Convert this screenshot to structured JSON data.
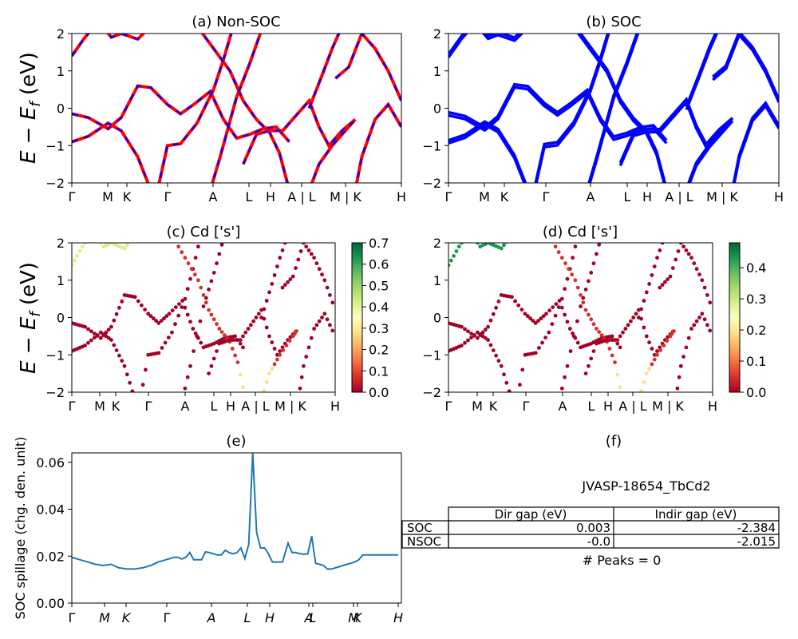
{
  "chart_data": [
    {
      "id": "a",
      "type": "line",
      "title": "(a) Non-SOC",
      "ylabel": "E − E_f (eV)",
      "ylim": [
        -2,
        2
      ],
      "yticks": [
        "2",
        "1",
        "0",
        "−1",
        "−2"
      ],
      "kpath": [
        "Γ",
        "M",
        "K",
        "Γ",
        "A",
        "L",
        "H",
        "A | L",
        "M | K",
        "H"
      ],
      "style": "red solid bands overlaid with blue dashed bands"
    },
    {
      "id": "b",
      "type": "line",
      "title": "(b) SOC",
      "ylim": [
        -2,
        2
      ],
      "yticks": [
        "2",
        "1",
        "0",
        "−1",
        "−2"
      ],
      "kpath": [
        "Γ",
        "M",
        "K",
        "Γ",
        "A",
        "L",
        "H",
        "A | L",
        "M | K",
        "H"
      ],
      "style": "blue bands, spin-orbit split"
    },
    {
      "id": "c",
      "type": "scatter",
      "title": "(c)  Cd ['s']",
      "ylabel": "E − E_f (eV)",
      "ylim": [
        -2,
        2
      ],
      "yticks": [
        "2",
        "1",
        "0",
        "−1",
        "−2"
      ],
      "kpath": [
        "Γ",
        "M",
        "K",
        "Γ",
        "A",
        "L",
        "H",
        "A | L",
        "M | K",
        "H"
      ],
      "colorbar": {
        "colormap": "RdYlGn",
        "range": [
          0.0,
          0.7
        ],
        "ticks": [
          "0.7",
          "0.6",
          "0.5",
          "0.4",
          "0.3",
          "0.2",
          "0.1",
          "0.0"
        ]
      }
    },
    {
      "id": "d",
      "type": "scatter",
      "title": "(d) Cd ['s']",
      "ylim": [
        -2,
        2
      ],
      "yticks": [
        "2",
        "1",
        "0",
        "−1",
        "−2"
      ],
      "kpath": [
        "Γ",
        "M",
        "K",
        "Γ",
        "A",
        "L",
        "H",
        "A | L",
        "M | K",
        "H"
      ],
      "colorbar": {
        "colormap": "RdYlGn",
        "range": [
          0.0,
          0.48
        ],
        "ticks": [
          "0.4",
          "0.3",
          "0.2",
          "0.1",
          "0.0"
        ]
      }
    },
    {
      "id": "e",
      "type": "line",
      "title": "(e)",
      "ylabel": "SOC spillage (chg. den. unit)",
      "ylim": [
        0.0,
        0.064
      ],
      "yticks": [
        "0.06",
        "0.04",
        "0.02",
        "0.00"
      ],
      "kpath": [
        "Γ",
        "M",
        "K",
        "Γ",
        "A",
        "L",
        "H",
        "A",
        "L",
        "M",
        "K",
        "H"
      ],
      "series": [
        {
          "x": [
            0,
            10,
            20,
            30,
            40,
            50,
            60,
            70,
            80,
            90,
            100,
            110,
            120,
            125,
            130,
            135,
            140,
            145,
            150,
            155,
            160,
            165,
            170,
            175,
            180,
            185,
            190,
            195,
            200,
            205,
            210,
            215,
            220,
            225,
            230,
            235,
            240,
            245,
            250,
            255,
            260,
            262,
            264,
            266,
            268,
            270,
            275,
            280,
            285,
            290,
            295,
            300,
            305,
            310,
            315,
            320,
            325,
            330,
            335,
            340,
            345,
            350,
            355,
            360,
            365,
            370,
            375,
            380,
            385,
            390,
            395,
            400,
            405,
            410,
            415
          ],
          "y": [
            0.0195,
            0.0185,
            0.0175,
            0.0165,
            0.016,
            0.0165,
            0.015,
            0.0145,
            0.0145,
            0.015,
            0.016,
            0.0175,
            0.0185,
            0.019,
            0.0195,
            0.0195,
            0.0188,
            0.0195,
            0.0215,
            0.0185,
            0.0185,
            0.0185,
            0.0218,
            0.0215,
            0.021,
            0.0205,
            0.0205,
            0.0225,
            0.0215,
            0.021,
            0.0215,
            0.0235,
            0.019,
            0.025,
            0.064,
            0.03,
            0.0235,
            0.0235,
            0.021,
            0.0175,
            0.0175,
            0.0175,
            0.0175,
            0.0175,
            0.0175,
            0.02,
            0.0255,
            0.0215,
            0.0215,
            0.021,
            0.0208,
            0.021,
            0.0285,
            0.017,
            0.0165,
            0.016,
            0.0145,
            0.0145,
            0.015,
            0.0155,
            0.016,
            0.0165,
            0.017,
            0.0175,
            0.0185,
            0.0205,
            0.0205,
            0.0205,
            0.0205,
            0.0205,
            0.0205,
            0.0205,
            0.0205,
            0.0205,
            0.0205
          ]
        }
      ]
    },
    {
      "id": "f",
      "type": "table",
      "title": "(f)",
      "subtitle": "JVASP-18654_TbCd2",
      "columns": [
        "Dir gap (eV)",
        "Indir gap (eV)"
      ],
      "rows": [
        {
          "label": "SOC",
          "values": [
            "0.003",
            "-2.384"
          ]
        },
        {
          "label": "NSOC",
          "values": [
            "-0.0",
            "-2.015"
          ]
        }
      ],
      "footer": "# Peaks = 0"
    }
  ]
}
